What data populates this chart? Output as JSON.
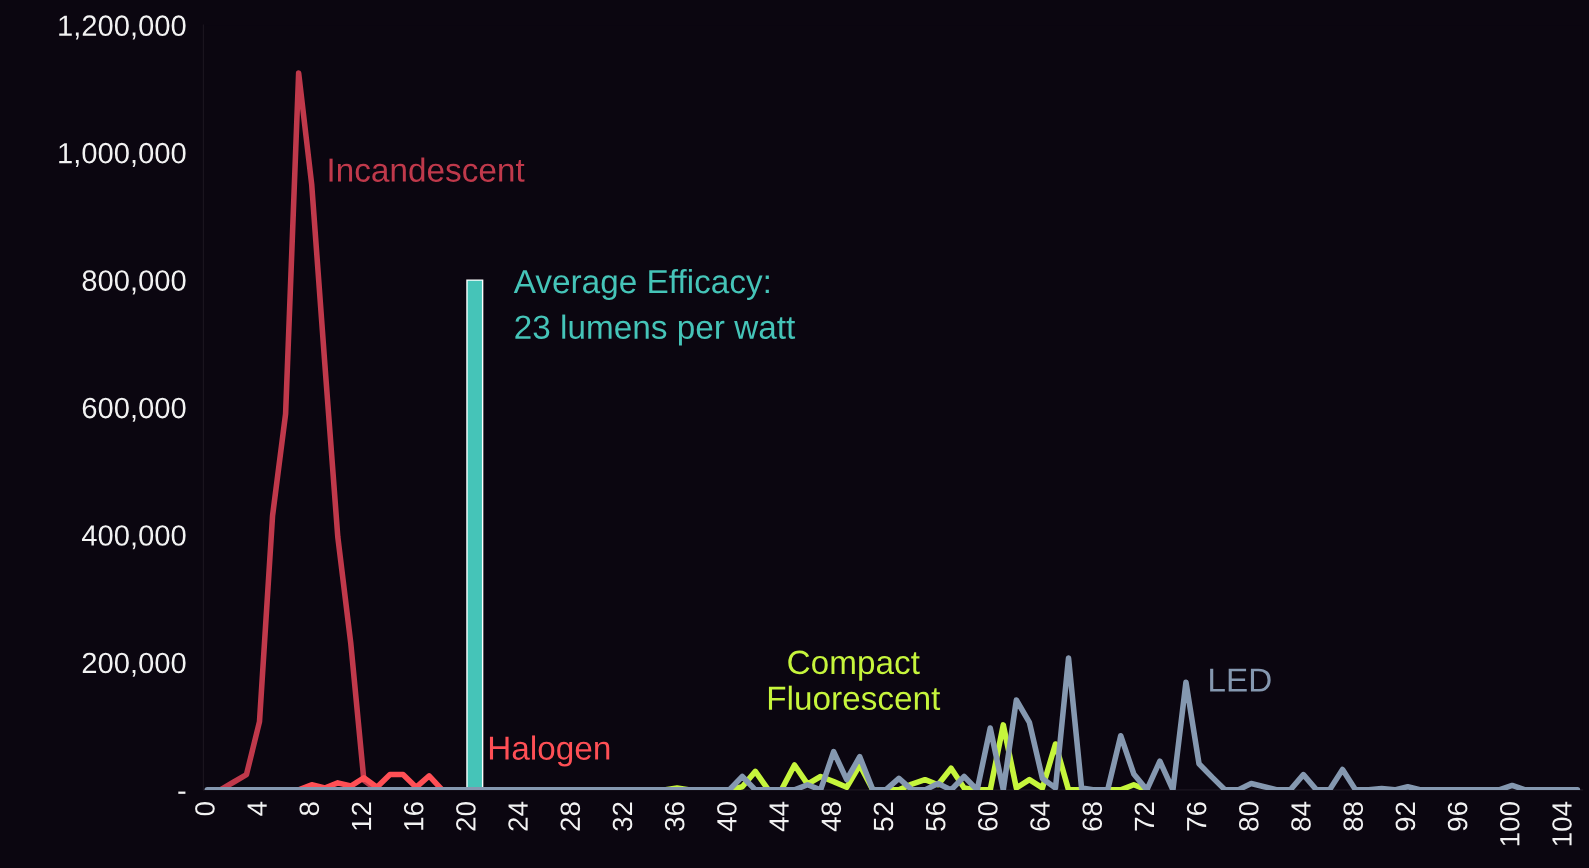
{
  "chart_data": {
    "type": "line",
    "x": [
      0,
      1,
      2,
      3,
      4,
      5,
      6,
      7,
      8,
      9,
      10,
      11,
      12,
      13,
      14,
      15,
      16,
      17,
      18,
      19,
      20,
      21,
      22,
      23,
      24,
      25,
      26,
      27,
      28,
      29,
      30,
      31,
      32,
      33,
      34,
      35,
      36,
      37,
      38,
      39,
      40,
      41,
      42,
      43,
      44,
      45,
      46,
      47,
      48,
      49,
      50,
      51,
      52,
      53,
      54,
      55,
      56,
      57,
      58,
      59,
      60,
      61,
      62,
      63,
      64,
      65,
      66,
      67,
      68,
      69,
      70,
      71,
      72,
      73,
      74,
      75,
      76,
      77,
      78,
      79,
      80,
      81,
      82,
      83,
      84,
      85,
      86,
      87,
      88,
      89,
      90,
      91,
      92,
      93,
      94,
      95,
      96,
      97,
      98,
      99,
      100,
      101,
      102,
      103,
      104,
      105
    ],
    "series": [
      {
        "name": "Incandescent",
        "color": "#c0394b",
        "values": [
          null,
          0,
          12000,
          24000,
          107000,
          430000,
          590000,
          1125000,
          950000,
          670000,
          397000,
          229000,
          15000,
          0,
          null,
          null,
          null,
          null,
          null,
          null,
          null,
          null,
          null,
          null,
          null,
          null,
          null,
          null,
          null,
          null,
          null,
          null,
          null,
          null,
          null,
          null,
          null,
          null,
          null,
          null,
          null,
          null,
          null,
          null,
          null,
          null,
          null,
          null,
          null,
          null,
          null,
          null,
          null,
          null,
          null,
          null,
          null,
          null,
          null,
          null,
          null,
          null,
          null,
          null,
          null,
          null,
          null,
          null,
          null,
          null,
          null,
          null,
          null,
          null,
          null,
          null,
          null,
          null,
          null,
          null,
          null,
          null,
          null,
          null,
          null,
          null,
          null,
          null,
          null,
          null,
          null,
          null,
          null,
          null,
          null,
          null,
          null,
          null,
          null,
          null,
          null,
          null,
          null,
          null,
          null,
          null
        ]
      },
      {
        "name": "Halogen",
        "color": "#ff4f55",
        "values": [
          null,
          null,
          null,
          null,
          null,
          null,
          null,
          0,
          8000,
          3000,
          11000,
          6000,
          19000,
          4000,
          24000,
          24000,
          4000,
          22000,
          0,
          null,
          null,
          null,
          null,
          null,
          null,
          null,
          null,
          null,
          null,
          null,
          null,
          null,
          null,
          null,
          null,
          null,
          null,
          null,
          null,
          null,
          null,
          null,
          null,
          null,
          null,
          null,
          null,
          null,
          null,
          null,
          null,
          null,
          null,
          null,
          null,
          null,
          null,
          null,
          null,
          null,
          null,
          null,
          null,
          null,
          null,
          null,
          null,
          null,
          null,
          null,
          null,
          null,
          null,
          null,
          null,
          null,
          null,
          null,
          null,
          null,
          null,
          null,
          null,
          null,
          null,
          null,
          null,
          null,
          null,
          null,
          null,
          null,
          null,
          null,
          null,
          null,
          null,
          null,
          null,
          null,
          null,
          null,
          null,
          null,
          null,
          null
        ]
      },
      {
        "name": "Compact\nFluorescent",
        "color": "#c6f53c",
        "values": [
          null,
          null,
          null,
          null,
          null,
          null,
          null,
          null,
          null,
          null,
          null,
          null,
          null,
          null,
          null,
          null,
          null,
          null,
          null,
          null,
          null,
          null,
          null,
          null,
          null,
          null,
          null,
          null,
          null,
          null,
          null,
          null,
          null,
          null,
          null,
          0,
          3000,
          0,
          null,
          null,
          0,
          5000,
          29000,
          0,
          0,
          39000,
          9000,
          21000,
          13000,
          4000,
          39000,
          0,
          null,
          0,
          9000,
          16000,
          8000,
          34000,
          3000,
          0,
          0,
          102000,
          3000,
          16000,
          3000,
          72000,
          0,
          null,
          null,
          null,
          0,
          8000,
          0,
          null,
          null,
          null,
          null,
          null,
          null,
          null,
          null,
          null,
          null,
          null,
          null,
          null,
          null,
          null,
          null,
          null,
          null,
          null,
          null,
          null,
          null,
          null,
          null,
          null,
          null,
          null,
          null,
          null,
          null,
          null,
          null,
          null
        ]
      },
      {
        "name": "LED",
        "color": "#8598b0",
        "values": [
          0,
          0,
          0,
          0,
          0,
          0,
          0,
          0,
          0,
          0,
          0,
          0,
          0,
          0,
          0,
          0,
          0,
          0,
          0,
          0,
          0,
          0,
          0,
          0,
          0,
          0,
          0,
          0,
          0,
          0,
          0,
          0,
          0,
          0,
          0,
          0,
          0,
          0,
          0,
          0,
          0,
          21000,
          0,
          0,
          0,
          0,
          8000,
          0,
          60000,
          16000,
          52000,
          0,
          0,
          18000,
          0,
          0,
          10000,
          0,
          21000,
          0,
          97000,
          0,
          141000,
          106000,
          18000,
          3000,
          207000,
          3000,
          0,
          0,
          85000,
          25000,
          0,
          45000,
          0,
          169000,
          41000,
          20000,
          0,
          0,
          10000,
          5000,
          0,
          0,
          24000,
          0,
          0,
          32000,
          0,
          0,
          2000,
          0,
          5000,
          0,
          0,
          0,
          0,
          0,
          0,
          0,
          7000,
          0,
          0,
          0,
          0,
          0
        ]
      },
      {
        "type": "bar",
        "color": "#45c4b8",
        "x": [
          20.5
        ],
        "values": [
          800000
        ]
      }
    ],
    "annotations": [
      {
        "text": "Average Efficacy:\n23 lumens per watt",
        "x": 20.5,
        "y": 800000
      }
    ],
    "xlim": [
      -0.3,
      105.4
    ],
    "xticks": [
      0,
      4,
      8,
      12,
      16,
      20,
      24,
      28,
      32,
      36,
      40,
      44,
      48,
      52,
      56,
      60,
      64,
      68,
      72,
      76,
      80,
      84,
      88,
      92,
      96,
      100,
      104
    ],
    "ylim": [
      0,
      1200000
    ],
    "yticks": [
      {
        "value": 0,
        "label": "-"
      },
      {
        "value": 200000,
        "label": "200,000"
      },
      {
        "value": 400000,
        "label": "400,000"
      },
      {
        "value": 600000,
        "label": "600,000"
      },
      {
        "value": 800000,
        "label": "800,000"
      },
      {
        "value": 1000000,
        "label": "1,000,000"
      },
      {
        "value": 1200000,
        "label": "1,200,000"
      }
    ],
    "grid": false,
    "legend": false,
    "line_style": "solid",
    "marker": "none"
  }
}
